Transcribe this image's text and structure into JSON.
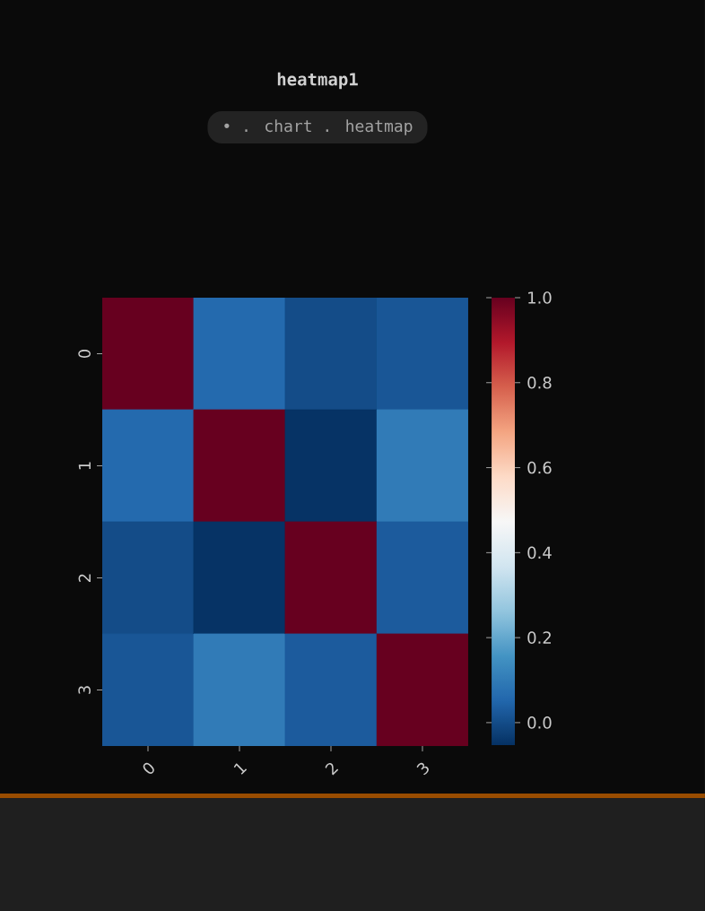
{
  "chart_data": {
    "type": "heatmap",
    "title": "heatmap1",
    "subtitle": "• . chart . heatmap",
    "categories": [
      "0",
      "1",
      "2",
      "3"
    ],
    "y_categories": [
      "0",
      "1",
      "2",
      "3"
    ],
    "cells": [
      [
        1.0,
        0.06,
        0.0,
        0.02
      ],
      [
        0.06,
        1.0,
        -0.05,
        0.1
      ],
      [
        0.0,
        -0.05,
        1.0,
        0.03
      ],
      [
        0.02,
        0.1,
        0.03,
        1.0
      ]
    ],
    "clim": [
      -0.055,
      1.0
    ],
    "cticks": [
      {
        "value": 0.0,
        "label": "0.0"
      },
      {
        "value": 0.2,
        "label": "0.2"
      },
      {
        "value": 0.4,
        "label": "0.4"
      },
      {
        "value": 0.6,
        "label": "0.6"
      },
      {
        "value": 0.8,
        "label": "0.8"
      },
      {
        "value": 1.0,
        "label": "1.0"
      }
    ]
  }
}
